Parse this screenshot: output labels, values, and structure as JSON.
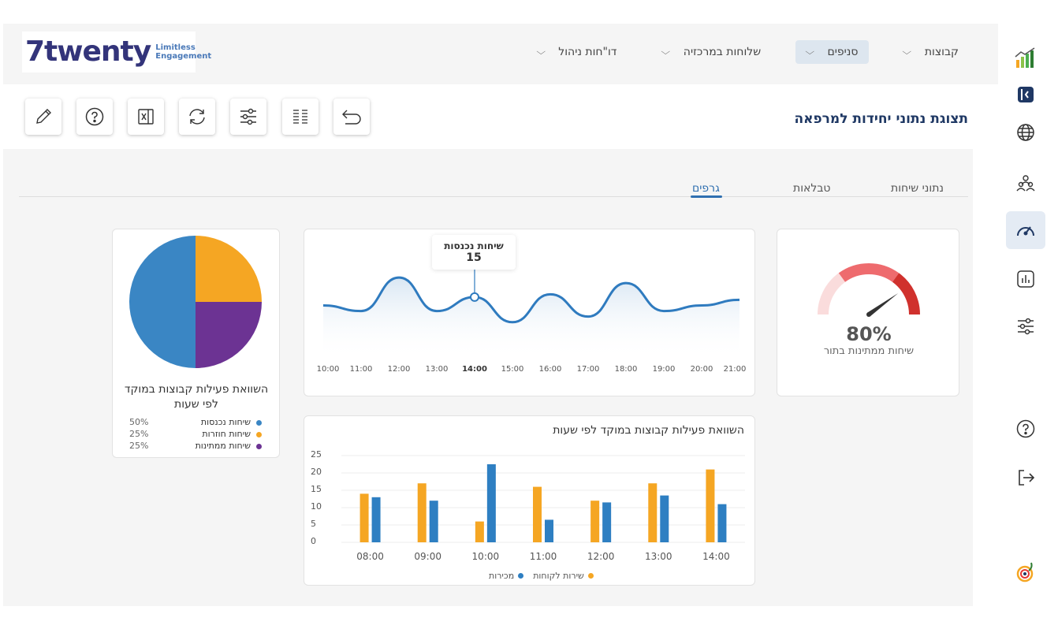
{
  "app": {
    "logo_text": "7twenty",
    "logo_sub_line1": "Limitless",
    "logo_sub_line2": "Engagement"
  },
  "nav": {
    "items": [
      {
        "label": "קבוצות",
        "active": false
      },
      {
        "label": "סניפים",
        "active": true
      },
      {
        "label": "שלוחות במרכזיה",
        "active": false
      },
      {
        "label": "דו\"חות ניהול",
        "active": false
      }
    ]
  },
  "sidebar": {
    "items": [
      {
        "icon": "bar-chart-logo-icon"
      },
      {
        "icon": "collapse-panel-icon"
      },
      {
        "icon": "globe-icon"
      },
      {
        "icon": "users-icon"
      },
      {
        "icon": "speedometer-icon",
        "active": true
      },
      {
        "icon": "report-chart-icon"
      },
      {
        "icon": "sliders-icon"
      },
      {
        "icon": "help-icon"
      },
      {
        "icon": "logout-icon"
      },
      {
        "icon": "brand-mark-icon"
      }
    ]
  },
  "toolbar": {
    "buttons": [
      "edit-icon",
      "help-icon",
      "excel-export-icon",
      "refresh-icon",
      "filter-sliders-icon",
      "columns-icon",
      "back-arrow-icon"
    ]
  },
  "page": {
    "title": "תצוגת נתוני יחידות למרפאה"
  },
  "tabs": {
    "items": [
      "נתוני שיחות",
      "טבלאות",
      "גרפים"
    ],
    "active": "גרפים"
  },
  "gauge": {
    "value": "80%",
    "label": "שיחות ממתינות בתור",
    "fraction": 0.8,
    "colors": [
      "#fadcdc",
      "#ee6b6e",
      "#d0312d"
    ]
  },
  "line_tooltip": {
    "label": "שיחות נכנסות",
    "value": "15"
  },
  "bar_card": {
    "title": "השוואת פעילות קבוצות במוקד לפי שעות"
  },
  "pie_card": {
    "title": "השוואת פעילות קבוצות במוקד לפי שעות",
    "legend": [
      {
        "label": "שיחות נכנסות",
        "pct": "50%",
        "color": "#3a86c4"
      },
      {
        "label": "שיחות חוזרות",
        "pct": "25%",
        "color": "#f5a623"
      },
      {
        "label": "שיחות ממתינות",
        "pct": "25%",
        "color": "#6c3393"
      }
    ]
  },
  "chart_data": [
    {
      "type": "line",
      "x": [
        "10:00",
        "11:00",
        "12:00",
        "13:00",
        "14:00",
        "15:00",
        "16:00",
        "17:00",
        "18:00",
        "19:00",
        "20:00",
        "21:00"
      ],
      "highlight_x": "14:00",
      "series": [
        {
          "name": "שיחות נכנסות",
          "values": [
            12,
            10,
            22,
            10,
            15,
            6,
            16,
            8,
            20,
            10,
            12,
            14
          ]
        }
      ],
      "color": "#2f7bbf"
    },
    {
      "type": "bar",
      "categories": [
        "08:00",
        "09:00",
        "10:00",
        "11:00",
        "12:00",
        "13:00",
        "14:00"
      ],
      "ylim": [
        0,
        25
      ],
      "yticks": [
        "0",
        "5",
        "10",
        "15",
        "20",
        "25"
      ],
      "series": [
        {
          "name": "שירות לקוחות",
          "color": "#f5a623",
          "values": [
            14,
            17,
            6,
            16,
            12,
            17,
            21
          ]
        },
        {
          "name": "מכירות",
          "color": "#2e7fc2",
          "values": [
            13,
            12,
            22.5,
            6.5,
            11.5,
            13.5,
            11
          ]
        }
      ]
    },
    {
      "type": "pie",
      "slices": [
        {
          "label": "שיחות נכנסות",
          "value": 50,
          "color": "#3a86c4"
        },
        {
          "label": "שיחות חוזרות",
          "value": 25,
          "color": "#f5a623"
        },
        {
          "label": "שיחות ממתינות",
          "value": 25,
          "color": "#6c3393"
        }
      ]
    }
  ]
}
